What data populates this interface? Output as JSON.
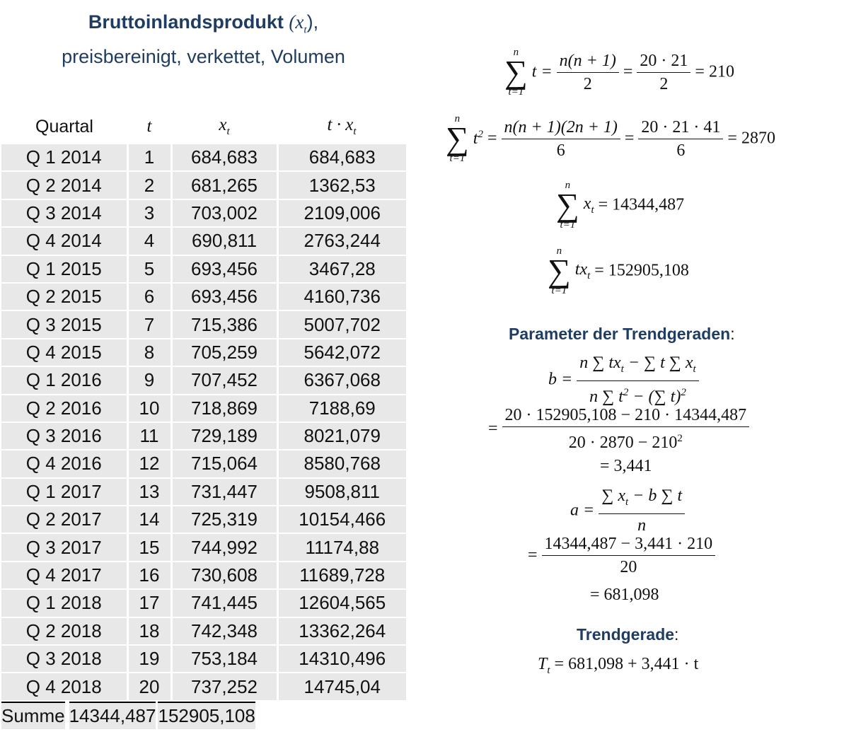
{
  "title": {
    "bold": "Bruttoinlandsprodukt",
    "symbol": "(x",
    "symbol_sub": "t",
    "symbol_close": "),",
    "subtitle": "preisbereinigt, verkettet, Volumen"
  },
  "table": {
    "headers": [
      "Quartal",
      "t",
      "x",
      "t · x"
    ],
    "header_subs": [
      "",
      "",
      "t",
      "t"
    ],
    "rows": [
      [
        "Q 1 2014",
        "1",
        "684,683",
        "684,683"
      ],
      [
        "Q 2 2014",
        "2",
        "681,265",
        "1362,53"
      ],
      [
        "Q 3 2014",
        "3",
        "703,002",
        "2109,006"
      ],
      [
        "Q 4 2014",
        "4",
        "690,811",
        "2763,244"
      ],
      [
        "Q 1 2015",
        "5",
        "693,456",
        "3467,28"
      ],
      [
        "Q 2 2015",
        "6",
        "693,456",
        "4160,736"
      ],
      [
        "Q 3 2015",
        "7",
        "715,386",
        "5007,702"
      ],
      [
        "Q 4 2015",
        "8",
        "705,259",
        "5642,072"
      ],
      [
        "Q 1 2016",
        "9",
        "707,452",
        "6367,068"
      ],
      [
        "Q 2 2016",
        "10",
        "718,869",
        "7188,69"
      ],
      [
        "Q 3 2016",
        "11",
        "729,189",
        "8021,079"
      ],
      [
        "Q 4 2016",
        "12",
        "715,064",
        "8580,768"
      ],
      [
        "Q 1 2017",
        "13",
        "731,447",
        "9508,811"
      ],
      [
        "Q 2 2017",
        "14",
        "725,319",
        "10154,466"
      ],
      [
        "Q 3 2017",
        "15",
        "744,992",
        "11174,88"
      ],
      [
        "Q 4 2017",
        "16",
        "730,608",
        "11689,728"
      ],
      [
        "Q 1 2018",
        "17",
        "741,445",
        "12604,565"
      ],
      [
        "Q 2 2018",
        "18",
        "742,348",
        "13362,264"
      ],
      [
        "Q 3 2018",
        "19",
        "753,184",
        "14310,496"
      ],
      [
        "Q 4 2018",
        "20",
        "737,252",
        "14745,04"
      ]
    ],
    "sum_row": [
      "Summe",
      "",
      "14344,487",
      "152905,108"
    ]
  },
  "formulas": {
    "sum_t": {
      "upper": "n",
      "lower": "t=1",
      "body": "t =",
      "num": "n(n + 1)",
      "den": "2",
      "eq": "=",
      "num2": "20 · 21",
      "den2": "2",
      "result": "= 210"
    },
    "sum_t2": {
      "upper": "n",
      "lower": "t=1",
      "body": "t",
      "sup": "2",
      "eq0": "=",
      "num": "n(n + 1)(2n + 1)",
      "den": "6",
      "eq": "=",
      "num2": "20 · 21 · 41",
      "den2": "6",
      "result": "= 2870"
    },
    "sum_x": {
      "upper": "n",
      "lower": "t=1",
      "body": "x",
      "sub": "t",
      "result": "= 14344,487"
    },
    "sum_tx": {
      "upper": "n",
      "lower": "t=1",
      "body": "tx",
      "sub": "t",
      "result": "= 152905,108"
    },
    "param_heading": "Parameter der Trendgeraden",
    "colon": ":",
    "b_lhs": "b =",
    "b_num": "n ∑ tx",
    "b_num_sub": "t",
    "b_num_rest": " − ∑ t ∑ x",
    "b_num_sub2": "t",
    "b_den": "n ∑ t",
    "b_den_sup": "2",
    "b_den_rest": " − (∑ t)",
    "b_den_sup2": "2",
    "b_eq": "=",
    "b_num2": "20 · 152905,108 − 210 · 14344,487",
    "b_den2": "20 · 2870 − 210",
    "b_den2_sup": "2",
    "b_result": "= 3,441",
    "a_lhs": "a =",
    "a_num": "∑ x",
    "a_num_sub": "t",
    "a_num_rest": " − b ∑ t",
    "a_den": "n",
    "a_eq": "=",
    "a_num2": "14344,487 − 3,441 · 210",
    "a_den2": "20",
    "a_result": "= 681,098",
    "trend_heading": "Trendgerade",
    "trend_lhs": "T",
    "trend_lhs_sub": "t",
    "trend_rhs": " = 681,098 + 3,441 · t"
  }
}
